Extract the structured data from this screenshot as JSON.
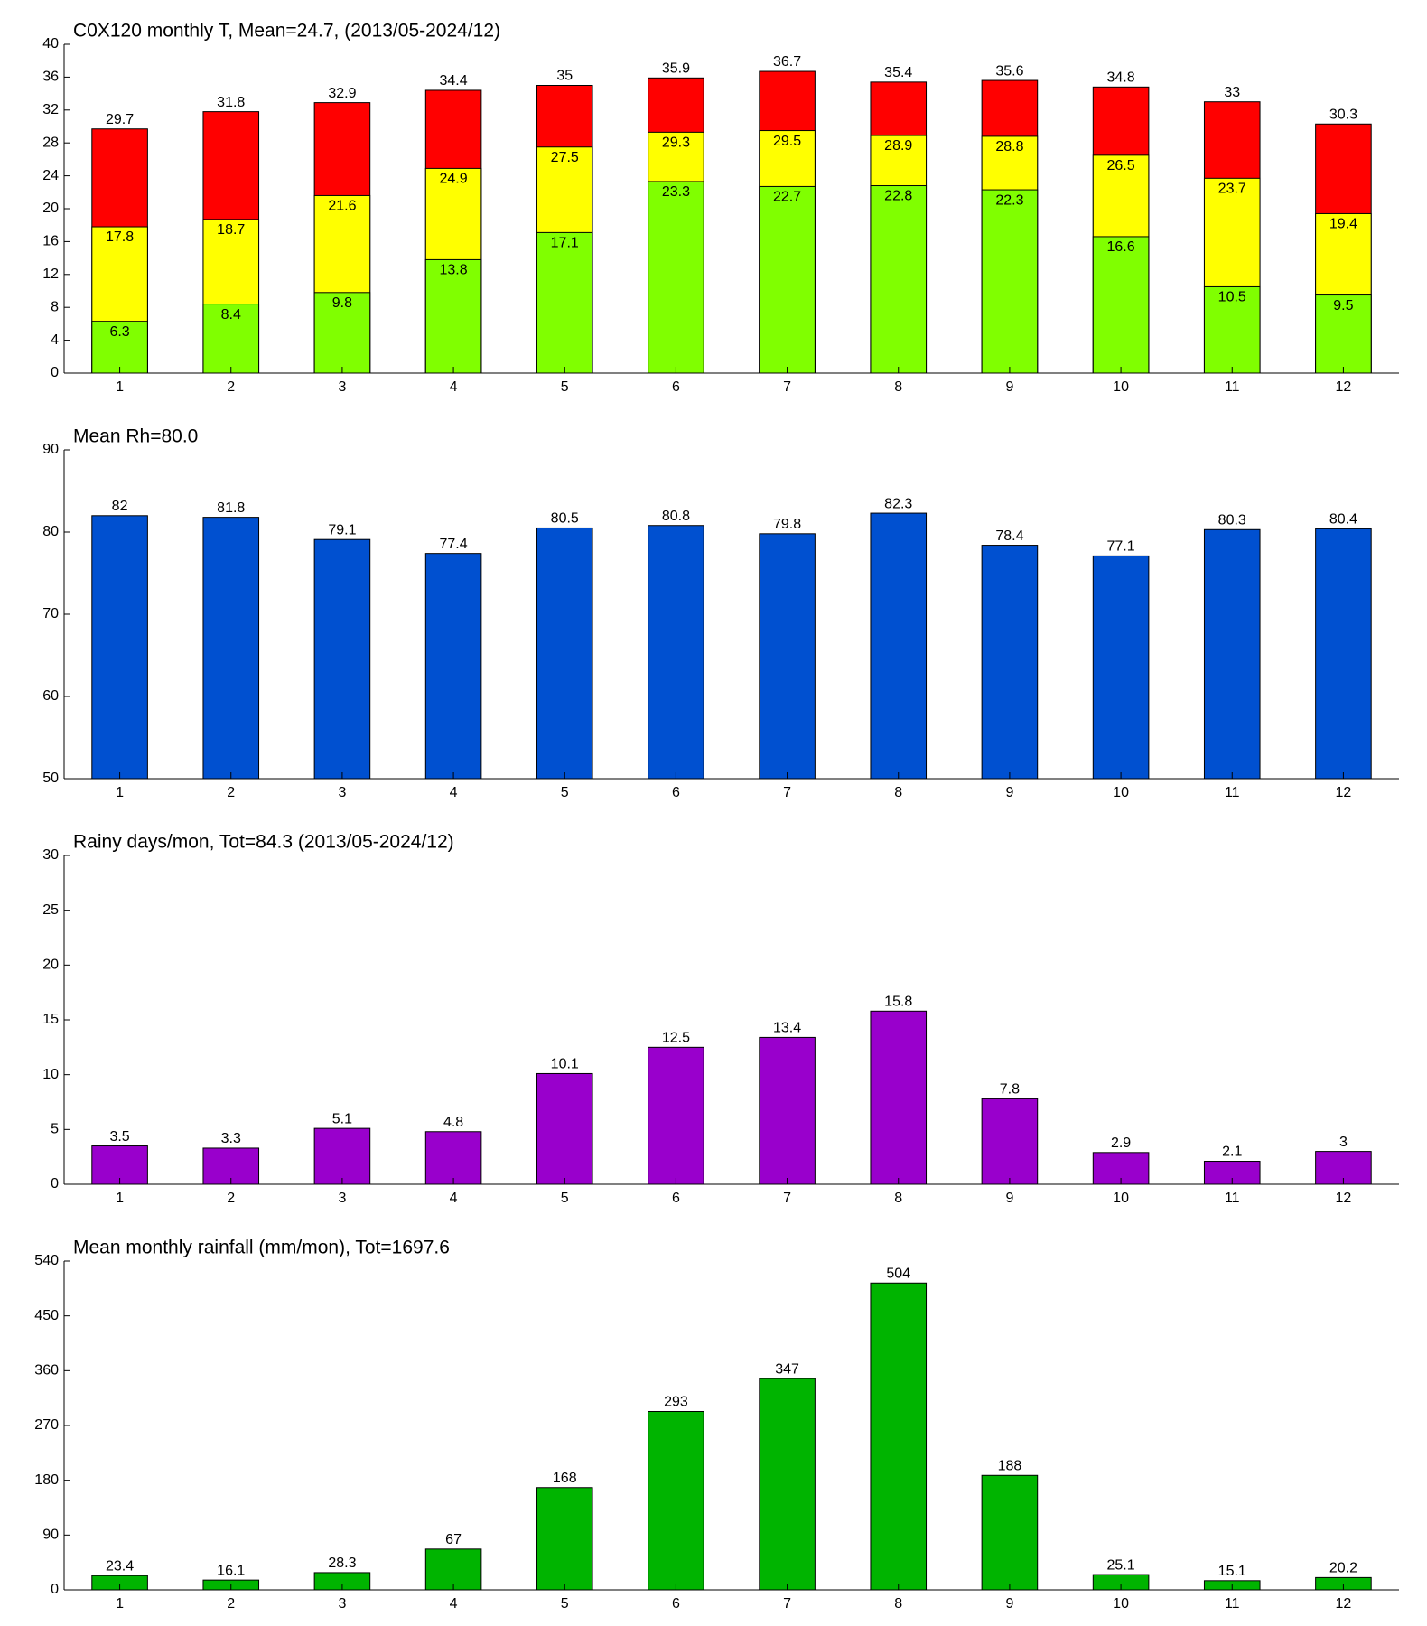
{
  "chart_data": [
    {
      "type": "bar",
      "title": "C0X120 monthly T, Mean=24.7, (2013/05-2024/12)",
      "categories": [
        "1",
        "2",
        "3",
        "4",
        "5",
        "6",
        "7",
        "8",
        "9",
        "10",
        "11",
        "12"
      ],
      "series": [
        {
          "color": "#ff0000",
          "values": [
            29.7,
            31.8,
            32.9,
            34.4,
            35,
            35.9,
            36.7,
            35.4,
            35.6,
            34.8,
            33,
            30.3
          ]
        },
        {
          "color": "#ffff00",
          "values": [
            17.8,
            18.7,
            21.6,
            24.9,
            27.5,
            29.3,
            29.5,
            28.9,
            28.8,
            26.5,
            23.7,
            19.4
          ]
        },
        {
          "color": "#80ff00",
          "values": [
            6.3,
            8.4,
            9.8,
            13.8,
            17.1,
            23.3,
            22.7,
            22.8,
            22.3,
            16.6,
            10.5,
            9.5
          ]
        }
      ],
      "ylim": [
        0,
        40
      ],
      "yticks": [
        0,
        4,
        8,
        12,
        16,
        20,
        24,
        28,
        32,
        36,
        40
      ]
    },
    {
      "type": "bar",
      "title": "Mean Rh=80.0",
      "categories": [
        "1",
        "2",
        "3",
        "4",
        "5",
        "6",
        "7",
        "8",
        "9",
        "10",
        "11",
        "12"
      ],
      "series": [
        {
          "color": "#0050d0",
          "values": [
            82,
            81.8,
            79.1,
            77.4,
            80.5,
            80.8,
            79.8,
            82.3,
            78.4,
            77.1,
            80.3,
            80.4
          ]
        }
      ],
      "ylim": [
        50,
        90
      ],
      "yticks": [
        50,
        60,
        70,
        80,
        90
      ]
    },
    {
      "type": "bar",
      "title": "Rainy days/mon, Tot=84.3 (2013/05-2024/12)",
      "categories": [
        "1",
        "2",
        "3",
        "4",
        "5",
        "6",
        "7",
        "8",
        "9",
        "10",
        "11",
        "12"
      ],
      "series": [
        {
          "color": "#9900cc",
          "values": [
            3.5,
            3.3,
            5.1,
            4.8,
            10.1,
            12.5,
            13.4,
            15.8,
            7.8,
            2.9,
            2.1,
            3
          ]
        }
      ],
      "ylim": [
        0,
        30
      ],
      "yticks": [
        0,
        5,
        10,
        15,
        20,
        25,
        30
      ]
    },
    {
      "type": "bar",
      "title": "Mean monthly rainfall (mm/mon), Tot=1697.6",
      "categories": [
        "1",
        "2",
        "3",
        "4",
        "5",
        "6",
        "7",
        "8",
        "9",
        "10",
        "11",
        "12"
      ],
      "series": [
        {
          "color": "#00b400",
          "values": [
            23.4,
            16.1,
            28.3,
            67,
            168,
            293,
            347,
            504,
            188,
            25.1,
            15.1,
            20.2
          ]
        }
      ],
      "ylim": [
        0,
        540
      ],
      "yticks": [
        0,
        90,
        180,
        270,
        360,
        450,
        540
      ]
    }
  ]
}
